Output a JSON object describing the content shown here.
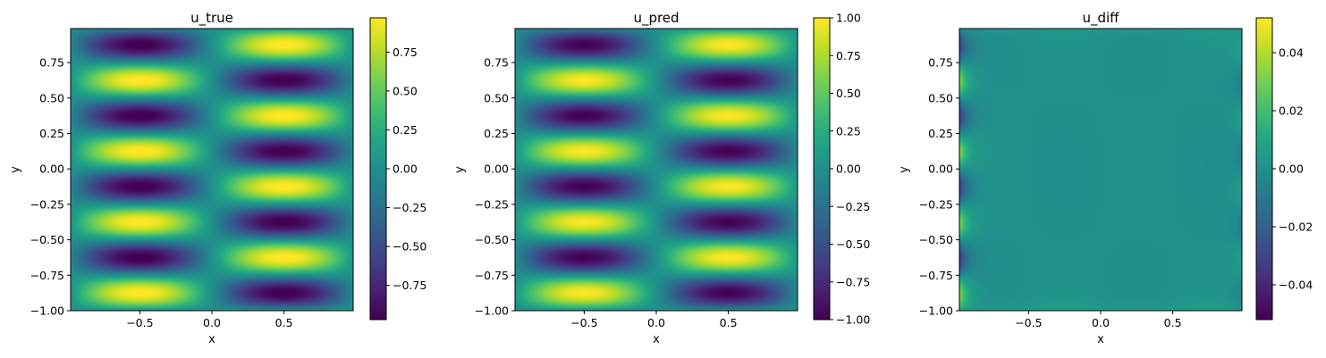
{
  "chart_data": [
    {
      "type": "heatmap",
      "title": "u_true",
      "xlabel": "x",
      "ylabel": "y",
      "xlim": [
        -0.98,
        0.98
      ],
      "ylim": [
        -1.0,
        0.99
      ],
      "xticks": [
        "−0.5",
        "0.0",
        "0.5"
      ],
      "xtick_values": [
        -0.5,
        0.0,
        0.5
      ],
      "yticks": [
        "−1.00",
        "−0.75",
        "−0.50",
        "−0.25",
        "0.00",
        "0.25",
        "0.50",
        "0.75"
      ],
      "ytick_values": [
        -1.0,
        -0.75,
        -0.5,
        -0.25,
        0.0,
        0.25,
        0.5,
        0.75
      ],
      "field": "u = -sin(pi*x) * sin(4*pi*y)",
      "colormap": "viridis",
      "colorbar": {
        "range": [
          -0.97,
          0.97
        ],
        "ticks": [
          "−0.75",
          "−0.50",
          "−0.25",
          "0.00",
          "0.25",
          "0.50",
          "0.75"
        ],
        "tick_values": [
          -0.75,
          -0.5,
          -0.25,
          0.0,
          0.25,
          0.5,
          0.75
        ]
      },
      "grid": false
    },
    {
      "type": "heatmap",
      "title": "u_pred",
      "xlabel": "x",
      "ylabel": "y",
      "xlim": [
        -0.98,
        0.98
      ],
      "ylim": [
        -1.0,
        0.99
      ],
      "xticks": [
        "−0.5",
        "0.0",
        "0.5"
      ],
      "xtick_values": [
        -0.5,
        0.0,
        0.5
      ],
      "yticks": [
        "−1.00",
        "−0.75",
        "−0.50",
        "−0.25",
        "0.00",
        "0.25",
        "0.50",
        "0.75"
      ],
      "ytick_values": [
        -1.0,
        -0.75,
        -0.5,
        -0.25,
        0.0,
        0.25,
        0.5,
        0.75
      ],
      "field": "u = -sin(pi*x) * sin(4*pi*y)",
      "colormap": "viridis",
      "colorbar": {
        "range": [
          -1.0,
          1.0
        ],
        "ticks": [
          "−1.00",
          "−0.75",
          "−0.50",
          "−0.25",
          "0.00",
          "0.25",
          "0.50",
          "0.75",
          "1.00"
        ],
        "tick_values": [
          -1.0,
          -0.75,
          -0.5,
          -0.25,
          0.0,
          0.25,
          0.5,
          0.75,
          1.0
        ]
      },
      "grid": false
    },
    {
      "type": "heatmap",
      "title": "u_diff",
      "xlabel": "x",
      "ylabel": "y",
      "xlim": [
        -0.98,
        0.98
      ],
      "ylim": [
        -1.0,
        0.99
      ],
      "xticks": [
        "−0.5",
        "0.0",
        "0.5"
      ],
      "xtick_values": [
        -0.5,
        0.0,
        0.5
      ],
      "yticks": [
        "−1.00",
        "−0.75",
        "−0.50",
        "−0.25",
        "0.00",
        "0.25",
        "0.50",
        "0.75"
      ],
      "ytick_values": [
        -1.0,
        -0.75,
        -0.5,
        -0.25,
        0.0,
        0.25,
        0.5,
        0.75
      ],
      "field": "near zero in the interior; error concentrated along the left edge (x ≈ -1), oscillating in y, reaching about ±0.05",
      "colormap": "viridis",
      "colorbar": {
        "range": [
          -0.052,
          0.052
        ],
        "ticks": [
          "−0.04",
          "−0.02",
          "0.00",
          "0.02",
          "0.04"
        ],
        "tick_values": [
          -0.04,
          -0.02,
          0.0,
          0.02,
          0.04
        ]
      },
      "grid": false
    }
  ]
}
